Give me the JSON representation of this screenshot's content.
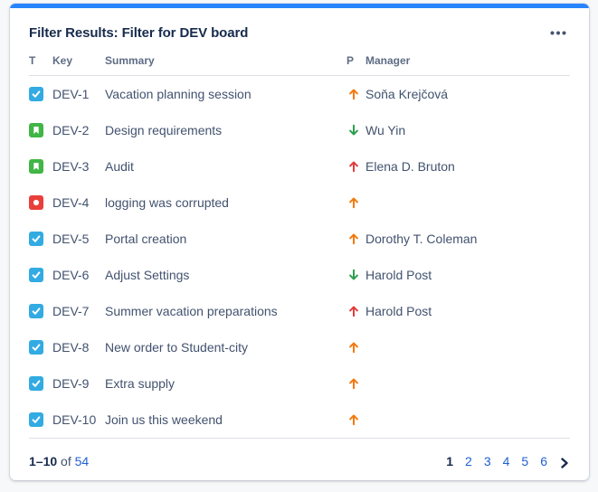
{
  "card": {
    "title": "Filter Results: Filter for DEV board",
    "menu_icon": "ellipsis-icon"
  },
  "table": {
    "columns": [
      "T",
      "Key",
      "Summary",
      "P",
      "Manager"
    ],
    "rows": [
      {
        "type": "task",
        "key": "DEV-1",
        "summary": "Vacation planning session",
        "priority": "up_orange",
        "manager": "Soňa Krejčová"
      },
      {
        "type": "story",
        "key": "DEV-2",
        "summary": "Design requirements",
        "priority": "down_green",
        "manager": "Wu Yin"
      },
      {
        "type": "story",
        "key": "DEV-3",
        "summary": "Audit",
        "priority": "up_red",
        "manager": "Elena D. Bruton"
      },
      {
        "type": "bug",
        "key": "DEV-4",
        "summary": "logging was corrupted",
        "priority": "up_orange",
        "manager": ""
      },
      {
        "type": "task",
        "key": "DEV-5",
        "summary": "Portal creation",
        "priority": "up_orange",
        "manager": "Dorothy T. Coleman"
      },
      {
        "type": "task",
        "key": "DEV-6",
        "summary": "Adjust Settings",
        "priority": "down_green",
        "manager": "Harold Post"
      },
      {
        "type": "task",
        "key": "DEV-7",
        "summary": "Summer vacation preparations",
        "priority": "up_red",
        "manager": "Harold Post"
      },
      {
        "type": "task",
        "key": "DEV-8",
        "summary": "New order to Student-city",
        "priority": "up_orange",
        "manager": ""
      },
      {
        "type": "task",
        "key": "DEV-9",
        "summary": "Extra supply",
        "priority": "up_orange",
        "manager": ""
      },
      {
        "type": "task",
        "key": "DEV-10",
        "summary": "Join us this weekend",
        "priority": "up_orange",
        "manager": ""
      }
    ]
  },
  "footer": {
    "range": "1–10",
    "of_label": "of",
    "total": "54",
    "pages": [
      "1",
      "2",
      "3",
      "4",
      "5",
      "6"
    ],
    "current_page": "1",
    "next_icon": "chevron-right-icon"
  },
  "colors": {
    "accent": "#2684FF",
    "task_icon": "#32ABE2",
    "story_icon": "#41B546",
    "bug_icon": "#E93E3A",
    "priority_up_orange": "#F2790D",
    "priority_up_red": "#E13C3C",
    "priority_down_green": "#2E9E4F",
    "link": "#2161D2",
    "heading_text": "#172B4D",
    "row_text": "#42526E",
    "column_header_text": "#5E6C84",
    "ellipsis": "#44546F"
  }
}
